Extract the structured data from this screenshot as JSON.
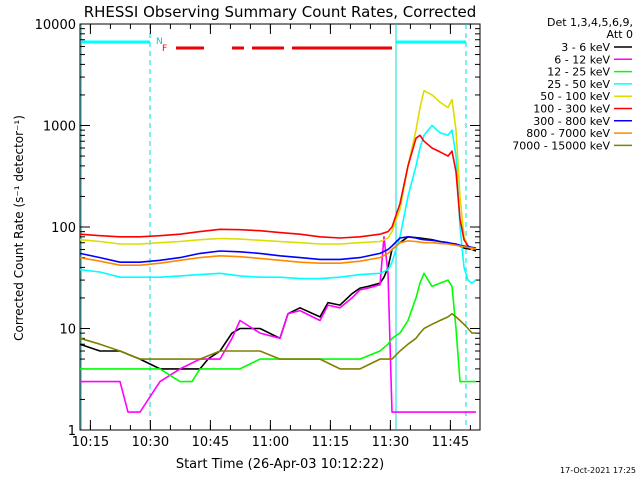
{
  "chart_data": {
    "type": "line",
    "title": "RHESSI Observing Summary Count Rates, Corrected",
    "xlabel": "Start Time (26-Apr-03 10:12:22)",
    "ylabel": "Corrected Count Rate (s⁻¹ detector⁻¹)",
    "yscale": "log",
    "ylim": [
      1,
      10000
    ],
    "xlim_minutes": [
      0,
      100
    ],
    "x_ticks": [
      {
        "label": "10:15",
        "minute": 2.6
      },
      {
        "label": "10:30",
        "minute": 17.6
      },
      {
        "label": "10:45",
        "minute": 32.6
      },
      {
        "label": "11:00",
        "minute": 47.6
      },
      {
        "label": "11:15",
        "minute": 62.6
      },
      {
        "label": "11:30",
        "minute": 77.6
      },
      {
        "label": "11:45",
        "minute": 92.6
      }
    ],
    "y_ticks": [
      {
        "label": "1",
        "value": 1
      },
      {
        "label": "10",
        "value": 10
      },
      {
        "label": "100",
        "value": 100
      },
      {
        "label": "1000",
        "value": 1000
      },
      {
        "label": "10000",
        "value": 10000
      }
    ],
    "legend_header": [
      "Det 1,3,4,5,6,9,",
      "Att 0"
    ],
    "legend_position": "right",
    "series": [
      {
        "name": "3 - 6 keV",
        "color": "#000000",
        "x": [
          0,
          5,
          10,
          15,
          20,
          25,
          30,
          32,
          35,
          38,
          40,
          45,
          50,
          52,
          55,
          60,
          62,
          65,
          68,
          70,
          72,
          75,
          76,
          77,
          78,
          80,
          82,
          85,
          88,
          90,
          92,
          93,
          95,
          96,
          98,
          99
        ],
        "y": [
          7,
          6,
          6,
          5,
          4,
          4,
          4,
          5,
          6,
          9,
          10,
          10,
          8,
          14,
          16,
          13,
          18,
          17,
          22,
          25,
          26,
          28,
          32,
          40,
          60,
          70,
          80,
          78,
          75,
          72,
          70,
          68,
          65,
          62,
          60,
          58
        ]
      },
      {
        "name": "6 - 12 keV",
        "color": "#ff00ff",
        "x": [
          0,
          5,
          10,
          12,
          15,
          20,
          25,
          30,
          35,
          38,
          40,
          45,
          50,
          52,
          55,
          60,
          62,
          65,
          68,
          70,
          72,
          75,
          76,
          77,
          78,
          80,
          82,
          85,
          88,
          90,
          92,
          93,
          95,
          96,
          98,
          99
        ],
        "y": [
          3,
          3,
          3,
          1.5,
          1.5,
          3,
          4,
          5,
          5,
          8,
          12,
          9,
          8,
          14,
          15,
          12,
          17,
          16,
          20,
          24,
          25,
          27,
          80,
          35,
          1.5,
          1.5,
          1.5,
          1.5,
          1.5,
          1.5,
          1.5,
          1.5,
          1.5,
          1.5,
          1.5,
          1.5
        ]
      },
      {
        "name": "12 - 25 keV",
        "color": "#00ff00",
        "x": [
          0,
          5,
          10,
          15,
          20,
          25,
          28,
          30,
          35,
          40,
          45,
          50,
          55,
          60,
          65,
          70,
          75,
          77,
          78,
          80,
          82,
          84,
          85,
          86,
          88,
          90,
          92,
          93,
          94,
          95,
          96,
          97,
          98,
          99
        ],
        "y": [
          4,
          4,
          4,
          4,
          4,
          3,
          3,
          4,
          4,
          4,
          5,
          5,
          5,
          5,
          5,
          5,
          6,
          7,
          8,
          9,
          12,
          20,
          28,
          35,
          26,
          28,
          30,
          26,
          10,
          3,
          3,
          3,
          3,
          3
        ]
      },
      {
        "name": "25 - 50 keV",
        "color": "#00ffff",
        "x": [
          0,
          5,
          10,
          15,
          20,
          25,
          30,
          35,
          40,
          45,
          50,
          55,
          60,
          65,
          70,
          75,
          77,
          78,
          80,
          82,
          84,
          85,
          86,
          88,
          90,
          92,
          93,
          94,
          95,
          96,
          97,
          98,
          99
        ],
        "y": [
          38,
          36,
          32,
          32,
          32,
          33,
          34,
          35,
          33,
          32,
          32,
          31,
          31,
          32,
          34,
          35,
          38,
          45,
          80,
          200,
          400,
          600,
          800,
          1000,
          850,
          800,
          900,
          500,
          100,
          40,
          30,
          28,
          30
        ]
      },
      {
        "name": "50 - 100 keV",
        "color": "#dddd00",
        "x": [
          0,
          5,
          10,
          15,
          20,
          25,
          30,
          35,
          40,
          45,
          50,
          55,
          60,
          65,
          70,
          75,
          77,
          78,
          80,
          82,
          84,
          85,
          86,
          88,
          90,
          92,
          93,
          94,
          95,
          96,
          97,
          98,
          99
        ],
        "y": [
          75,
          72,
          68,
          68,
          70,
          72,
          75,
          77,
          76,
          74,
          72,
          70,
          68,
          68,
          70,
          72,
          78,
          90,
          150,
          400,
          900,
          1500,
          2200,
          2000,
          1700,
          1500,
          1800,
          900,
          200,
          80,
          65,
          60,
          62
        ]
      },
      {
        "name": "100 - 300 keV",
        "color": "#ff0000",
        "x": [
          0,
          5,
          10,
          15,
          20,
          25,
          30,
          35,
          40,
          45,
          50,
          55,
          60,
          65,
          70,
          75,
          77,
          78,
          80,
          82,
          84,
          85,
          86,
          88,
          90,
          92,
          93,
          94,
          95,
          96,
          97,
          98,
          99
        ],
        "y": [
          85,
          82,
          80,
          80,
          82,
          85,
          90,
          95,
          94,
          92,
          88,
          85,
          80,
          78,
          80,
          85,
          90,
          100,
          170,
          400,
          750,
          800,
          700,
          600,
          550,
          500,
          560,
          350,
          120,
          75,
          65,
          62,
          60
        ]
      },
      {
        "name": "300 - 800 keV",
        "color": "#0000ff",
        "x": [
          0,
          5,
          10,
          15,
          20,
          25,
          30,
          35,
          40,
          45,
          50,
          55,
          60,
          65,
          70,
          75,
          77,
          78,
          80,
          82,
          84,
          85,
          86,
          88,
          90,
          92,
          93,
          94,
          95,
          96,
          97,
          98,
          99
        ],
        "y": [
          55,
          50,
          45,
          45,
          47,
          50,
          55,
          58,
          57,
          55,
          52,
          50,
          48,
          48,
          50,
          55,
          60,
          65,
          78,
          80,
          78,
          76,
          75,
          74,
          72,
          70,
          69,
          68,
          66,
          65,
          64,
          63,
          62
        ]
      },
      {
        "name": "800 - 7000 keV",
        "color": "#ff8800",
        "x": [
          0,
          5,
          10,
          15,
          20,
          25,
          30,
          35,
          40,
          45,
          50,
          55,
          60,
          65,
          70,
          75,
          77,
          78,
          80,
          82,
          84,
          85,
          86,
          88,
          90,
          92,
          93,
          94,
          95,
          96,
          97,
          98,
          99
        ],
        "y": [
          50,
          46,
          42,
          42,
          44,
          47,
          50,
          52,
          51,
          49,
          47,
          45,
          44,
          44,
          46,
          50,
          55,
          60,
          70,
          73,
          72,
          71,
          70,
          70,
          69,
          68,
          67,
          66,
          65,
          64,
          63,
          62,
          61
        ]
      },
      {
        "name": "7000 - 15000 keV",
        "color": "#808000",
        "x": [
          0,
          5,
          10,
          15,
          20,
          25,
          30,
          35,
          40,
          45,
          50,
          55,
          60,
          65,
          70,
          75,
          77,
          78,
          80,
          82,
          84,
          85,
          86,
          88,
          90,
          92,
          93,
          94,
          95,
          96,
          97,
          98,
          99
        ],
        "y": [
          8,
          7,
          6,
          5,
          5,
          5,
          5,
          6,
          6,
          6,
          5,
          5,
          5,
          4,
          4,
          5,
          5,
          5,
          6,
          7,
          8,
          9,
          10,
          11,
          12,
          13,
          14,
          13,
          12,
          11,
          10,
          9,
          9
        ]
      }
    ],
    "annotations": {
      "N_label": "N",
      "F_label": "F",
      "timestamp": "17-Oct-2021 17:25"
    }
  }
}
